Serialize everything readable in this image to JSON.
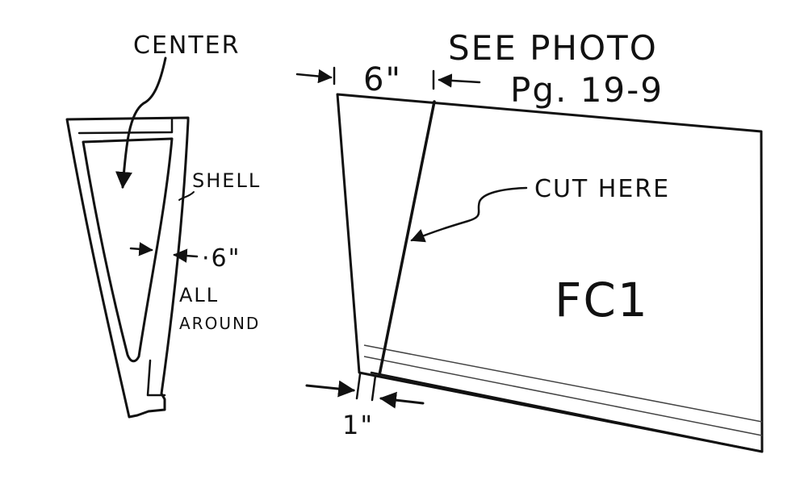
{
  "colors": {
    "ink": "#111111",
    "paper": "#ffffff"
  },
  "labels": {
    "center": "CENTER",
    "shell": "SHELL",
    "wall_thickness": "·6\"",
    "all_around_1": "ALL",
    "all_around_2": "AROUND",
    "see_photo": "SEE PHOTO",
    "page_ref": "Pg. 19-9",
    "top_width": "6\"",
    "cut_here": "CUT HERE",
    "part_id": "FC1",
    "bottom_width": "1\""
  }
}
